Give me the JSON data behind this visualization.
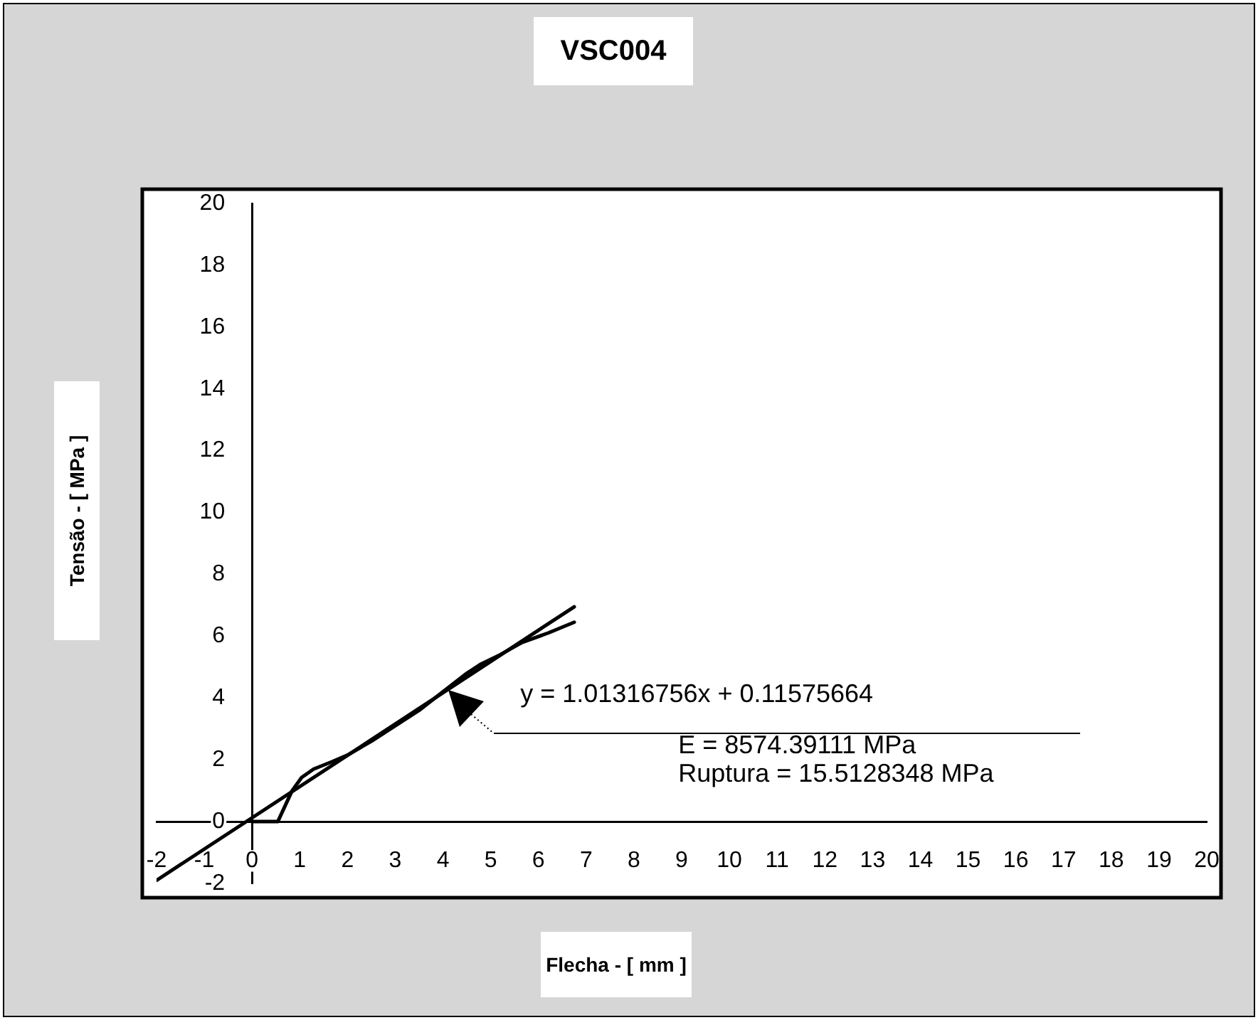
{
  "chart_data": {
    "type": "line",
    "title": "VSC004",
    "xlabel": "Flecha - [ mm ]",
    "ylabel": "Tensão - [ MPa ]",
    "xlim": [
      -2,
      20
    ],
    "xticks": [
      -2,
      -1,
      0,
      1,
      2,
      3,
      4,
      5,
      6,
      7,
      8,
      9,
      10,
      11,
      12,
      13,
      14,
      15,
      16,
      17,
      18,
      19,
      20
    ],
    "ylim": [
      -2,
      20
    ],
    "yticks": [
      -2,
      0,
      2,
      4,
      6,
      8,
      10,
      12,
      14,
      16,
      18,
      20
    ],
    "grid": false,
    "legend": false,
    "marker": "none",
    "line_style": "solid",
    "series": [
      {
        "color": "#000000",
        "x": [
          0,
          0.54,
          0.84,
          1.04,
          1.29,
          1.68,
          2.0,
          2.5,
          3.0,
          3.5,
          4.0,
          4.5,
          4.8,
          5.2,
          5.66,
          6.2,
          6.75
        ],
        "values": [
          0,
          0,
          1.0,
          1.43,
          1.7,
          1.94,
          2.15,
          2.6,
          3.1,
          3.6,
          4.2,
          4.8,
          5.1,
          5.4,
          5.8,
          6.1,
          6.45
        ]
      },
      {
        "type": "line",
        "color": "#000000",
        "x": [
          -2,
          6.75
        ],
        "values": [
          -1.9,
          6.95
        ]
      }
    ],
    "annotations": [
      {
        "text": "y = 1.01316756x + 0.11575664",
        "x": 4.1,
        "y": 4.27
      },
      "E = 8574.39111 MPa",
      "Ruptura = 15.5128348 MPa"
    ]
  }
}
